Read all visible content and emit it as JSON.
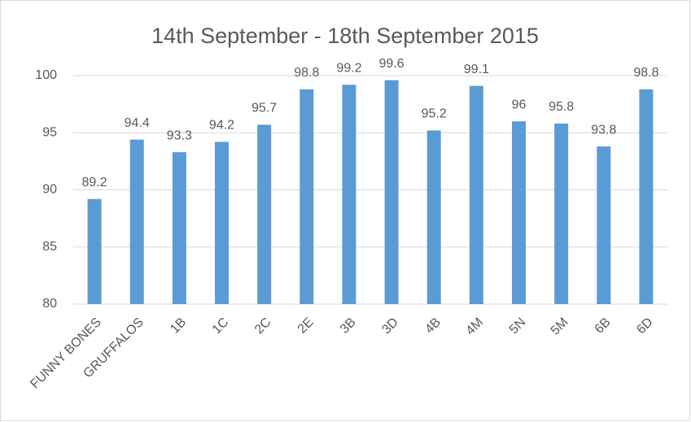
{
  "chart_data": {
    "type": "bar",
    "title": "14th September - 18th September 2015",
    "categories": [
      "FUNNY BONES",
      "GRUFFALOS",
      "1B",
      "1C",
      "2C",
      "2E",
      "3B",
      "3D",
      "4B",
      "4M",
      "5N",
      "5M",
      "6B",
      "6D"
    ],
    "values": [
      89.2,
      94.4,
      93.3,
      94.2,
      95.7,
      98.8,
      99.2,
      99.6,
      95.2,
      99.1,
      96,
      95.8,
      93.8,
      98.8
    ],
    "color": "#5b9bd5",
    "ylim": [
      80,
      100
    ],
    "yticks": [
      80,
      85,
      90,
      95,
      100
    ],
    "grid": true
  }
}
